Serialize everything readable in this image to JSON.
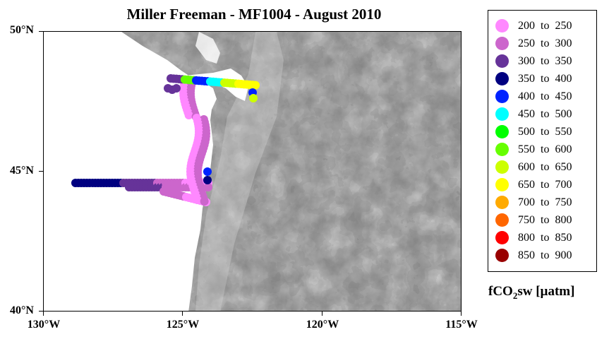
{
  "title": "Miller Freeman - MF1004 - August 2010",
  "axes": {
    "y_ticks": [
      "50°N",
      "45°N",
      "40°N"
    ],
    "x_ticks": [
      "130°W",
      "125°W",
      "120°W",
      "115°W"
    ],
    "lon_range": [
      -130,
      -115
    ],
    "lat_range": [
      40,
      50
    ]
  },
  "legend": {
    "items": [
      {
        "label": "200  to  250",
        "color": "#ff88ff"
      },
      {
        "label": "250  to  300",
        "color": "#cc66cc"
      },
      {
        "label": "300  to  350",
        "color": "#663399"
      },
      {
        "label": "350  to  400",
        "color": "#000080"
      },
      {
        "label": "400  to  450",
        "color": "#0022ff"
      },
      {
        "label": "450  to  500",
        "color": "#00ffff"
      },
      {
        "label": "500  to  550",
        "color": "#00ff00"
      },
      {
        "label": "550  to  600",
        "color": "#66ff00"
      },
      {
        "label": "600  to  650",
        "color": "#ccff00"
      },
      {
        "label": "650  to  700",
        "color": "#ffff00"
      },
      {
        "label": "700  to  750",
        "color": "#ffaa00"
      },
      {
        "label": "750  to  800",
        "color": "#ff6600"
      },
      {
        "label": "800  to  850",
        "color": "#ff0000"
      },
      {
        "label": "850  to  900",
        "color": "#990000"
      }
    ]
  },
  "unit_label": {
    "prefix": "fCO",
    "subscript": "2",
    "suffix": "sw [µatm]"
  }
}
